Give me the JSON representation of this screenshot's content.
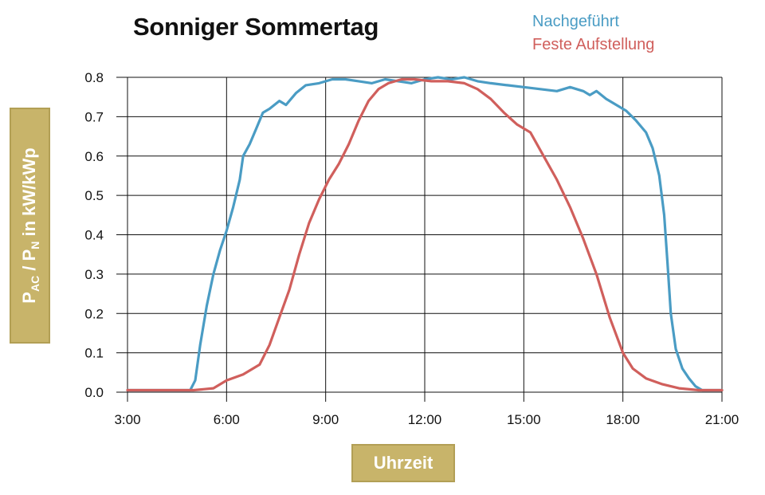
{
  "chart_data": {
    "type": "line",
    "title": "Sonniger Sommertag",
    "xlabel": "Uhrzeit",
    "ylabel": {
      "p1": "P",
      "sub1": "AC",
      "mid": " / P",
      "sub2": "N",
      "rest": " in kW/kWp"
    },
    "xlim": [
      3,
      21
    ],
    "ylim": [
      0,
      0.8
    ],
    "x_ticks": [
      {
        "value": 3,
        "label": "3:00"
      },
      {
        "value": 6,
        "label": "6:00"
      },
      {
        "value": 9,
        "label": "9:00"
      },
      {
        "value": 12,
        "label": "12:00"
      },
      {
        "value": 15,
        "label": "15:00"
      },
      {
        "value": 18,
        "label": "18:00"
      },
      {
        "value": 21,
        "label": "21:00"
      }
    ],
    "y_ticks": [
      {
        "value": 0,
        "label": "0.0"
      },
      {
        "value": 0.1,
        "label": "0.1"
      },
      {
        "value": 0.2,
        "label": "0.2"
      },
      {
        "value": 0.3,
        "label": "0.3"
      },
      {
        "value": 0.4,
        "label": "0.4"
      },
      {
        "value": 0.5,
        "label": "0.5"
      },
      {
        "value": 0.6,
        "label": "0.6"
      },
      {
        "value": 0.7,
        "label": "0.7"
      },
      {
        "value": 0.8,
        "label": "0.8"
      }
    ],
    "grid": true,
    "legend_position": "top-right",
    "series": [
      {
        "name": "Nachgeführt",
        "color": "#4a9cc4",
        "points": [
          [
            3.0,
            0.005
          ],
          [
            4.0,
            0.005
          ],
          [
            4.9,
            0.005
          ],
          [
            5.05,
            0.03
          ],
          [
            5.2,
            0.12
          ],
          [
            5.4,
            0.22
          ],
          [
            5.6,
            0.3
          ],
          [
            5.8,
            0.36
          ],
          [
            6.0,
            0.41
          ],
          [
            6.2,
            0.47
          ],
          [
            6.4,
            0.54
          ],
          [
            6.5,
            0.6
          ],
          [
            6.7,
            0.63
          ],
          [
            6.9,
            0.67
          ],
          [
            7.1,
            0.71
          ],
          [
            7.3,
            0.72
          ],
          [
            7.6,
            0.74
          ],
          [
            7.8,
            0.73
          ],
          [
            8.1,
            0.76
          ],
          [
            8.4,
            0.78
          ],
          [
            8.8,
            0.785
          ],
          [
            9.2,
            0.795
          ],
          [
            9.6,
            0.795
          ],
          [
            10.0,
            0.79
          ],
          [
            10.4,
            0.785
          ],
          [
            10.8,
            0.795
          ],
          [
            11.2,
            0.79
          ],
          [
            11.6,
            0.785
          ],
          [
            12.0,
            0.795
          ],
          [
            12.4,
            0.8
          ],
          [
            12.8,
            0.795
          ],
          [
            13.2,
            0.8
          ],
          [
            13.6,
            0.79
          ],
          [
            14.0,
            0.785
          ],
          [
            14.5,
            0.78
          ],
          [
            15.0,
            0.775
          ],
          [
            15.5,
            0.77
          ],
          [
            16.0,
            0.765
          ],
          [
            16.4,
            0.775
          ],
          [
            16.8,
            0.765
          ],
          [
            17.0,
            0.755
          ],
          [
            17.2,
            0.765
          ],
          [
            17.5,
            0.745
          ],
          [
            17.8,
            0.73
          ],
          [
            18.1,
            0.715
          ],
          [
            18.4,
            0.69
          ],
          [
            18.7,
            0.66
          ],
          [
            18.9,
            0.62
          ],
          [
            19.1,
            0.55
          ],
          [
            19.25,
            0.45
          ],
          [
            19.35,
            0.33
          ],
          [
            19.45,
            0.2
          ],
          [
            19.6,
            0.11
          ],
          [
            19.8,
            0.06
          ],
          [
            20.0,
            0.035
          ],
          [
            20.2,
            0.015
          ],
          [
            20.4,
            0.005
          ],
          [
            21.0,
            0.005
          ]
        ]
      },
      {
        "name": "Feste Aufstellung",
        "color": "#d05f5c",
        "points": [
          [
            3.0,
            0.005
          ],
          [
            4.0,
            0.005
          ],
          [
            5.0,
            0.005
          ],
          [
            5.6,
            0.01
          ],
          [
            6.0,
            0.03
          ],
          [
            6.5,
            0.045
          ],
          [
            7.0,
            0.07
          ],
          [
            7.3,
            0.12
          ],
          [
            7.6,
            0.19
          ],
          [
            7.9,
            0.26
          ],
          [
            8.2,
            0.35
          ],
          [
            8.5,
            0.43
          ],
          [
            8.8,
            0.49
          ],
          [
            9.1,
            0.54
          ],
          [
            9.4,
            0.58
          ],
          [
            9.7,
            0.63
          ],
          [
            10.0,
            0.69
          ],
          [
            10.3,
            0.74
          ],
          [
            10.6,
            0.77
          ],
          [
            10.9,
            0.785
          ],
          [
            11.3,
            0.795
          ],
          [
            11.7,
            0.795
          ],
          [
            12.2,
            0.79
          ],
          [
            12.7,
            0.79
          ],
          [
            13.2,
            0.785
          ],
          [
            13.6,
            0.77
          ],
          [
            14.0,
            0.745
          ],
          [
            14.4,
            0.71
          ],
          [
            14.8,
            0.68
          ],
          [
            15.2,
            0.66
          ],
          [
            15.6,
            0.6
          ],
          [
            16.0,
            0.54
          ],
          [
            16.4,
            0.47
          ],
          [
            16.8,
            0.39
          ],
          [
            17.2,
            0.3
          ],
          [
            17.6,
            0.19
          ],
          [
            18.0,
            0.1
          ],
          [
            18.3,
            0.06
          ],
          [
            18.7,
            0.035
          ],
          [
            19.2,
            0.02
          ],
          [
            19.7,
            0.01
          ],
          [
            20.3,
            0.005
          ],
          [
            21.0,
            0.005
          ]
        ]
      }
    ]
  }
}
